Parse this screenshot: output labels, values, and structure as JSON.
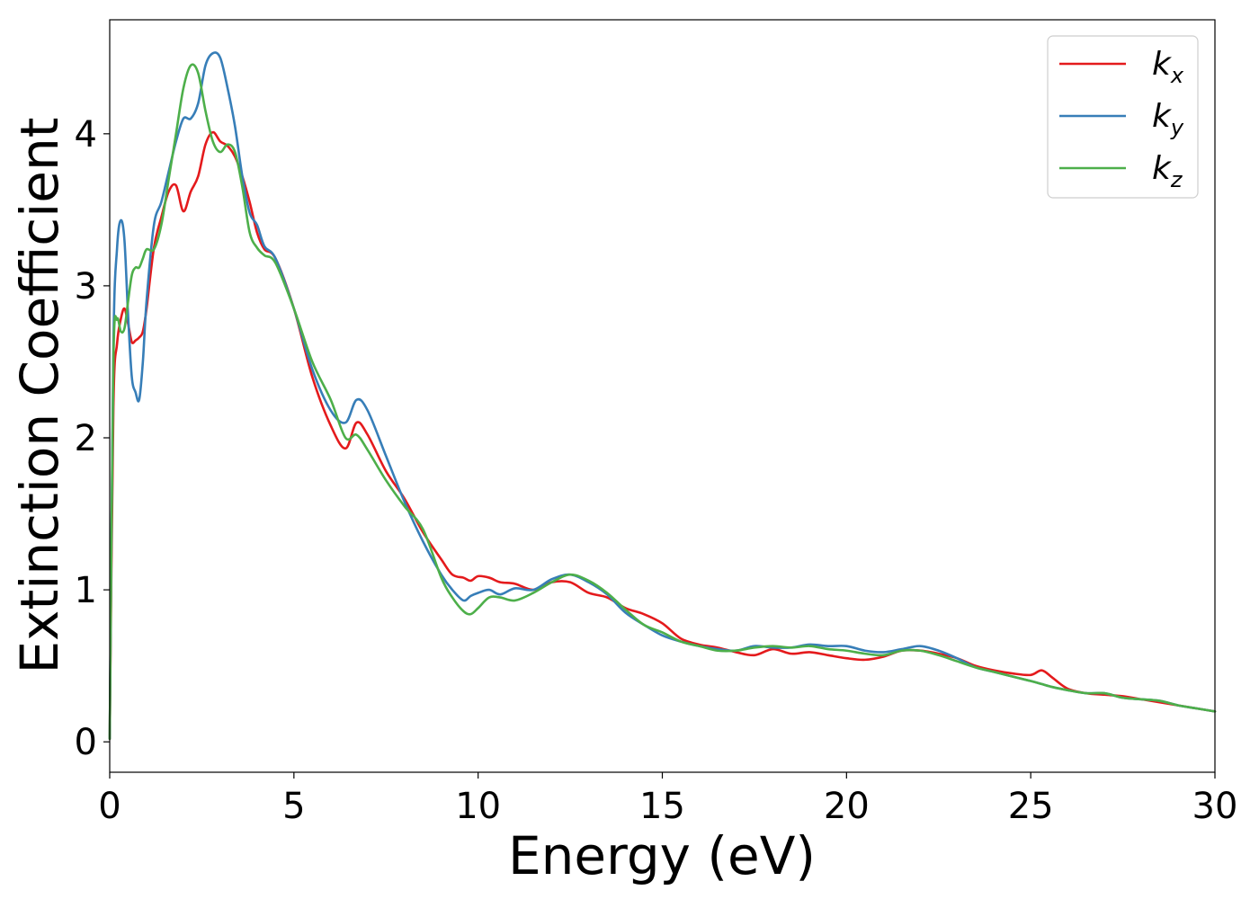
{
  "chart_data": {
    "type": "line",
    "xlabel": "Energy (eV)",
    "ylabel": "Extinction Coefficient",
    "xlim": [
      0,
      30
    ],
    "ylim": [
      -0.2,
      4.75
    ],
    "xticks": [
      0,
      5,
      10,
      15,
      20,
      25,
      30
    ],
    "yticks": [
      0,
      1,
      2,
      3,
      4
    ],
    "grid": false,
    "legend_position": "top-right",
    "series": [
      {
        "name": "k_x",
        "label_main": "k",
        "label_sub": "x",
        "color": "#e41a1c",
        "x": [
          0,
          0.1,
          0.2,
          0.3,
          0.4,
          0.5,
          0.6,
          0.7,
          0.8,
          0.9,
          1.0,
          1.2,
          1.4,
          1.6,
          1.8,
          2.0,
          2.2,
          2.4,
          2.6,
          2.8,
          3.0,
          3.2,
          3.4,
          3.6,
          3.8,
          4.0,
          4.2,
          4.5,
          5.0,
          5.5,
          6.0,
          6.4,
          6.7,
          7.0,
          7.5,
          8.0,
          8.5,
          9.0,
          9.3,
          9.6,
          9.8,
          10.0,
          10.3,
          10.6,
          11.0,
          11.5,
          12.0,
          12.5,
          13.0,
          13.5,
          14.0,
          14.5,
          15.0,
          15.5,
          16.0,
          16.5,
          17.0,
          17.5,
          18.0,
          18.5,
          19.0,
          19.5,
          20.0,
          20.5,
          21.0,
          21.5,
          22.0,
          22.5,
          23.0,
          23.5,
          24.0,
          24.5,
          25.0,
          25.3,
          25.6,
          26.0,
          26.5,
          27.0,
          27.5,
          28.0,
          28.5,
          29.0,
          29.5,
          30.0
        ],
        "y": [
          0.02,
          2.2,
          2.62,
          2.78,
          2.85,
          2.75,
          2.63,
          2.64,
          2.66,
          2.7,
          2.85,
          3.25,
          3.45,
          3.62,
          3.66,
          3.49,
          3.62,
          3.72,
          3.93,
          4.01,
          3.95,
          3.92,
          3.85,
          3.72,
          3.55,
          3.35,
          3.24,
          3.18,
          2.85,
          2.4,
          2.08,
          1.93,
          2.1,
          2.02,
          1.78,
          1.6,
          1.38,
          1.2,
          1.1,
          1.08,
          1.06,
          1.09,
          1.08,
          1.05,
          1.04,
          1.0,
          1.05,
          1.05,
          0.98,
          0.95,
          0.88,
          0.84,
          0.78,
          0.68,
          0.64,
          0.62,
          0.59,
          0.57,
          0.61,
          0.58,
          0.59,
          0.57,
          0.55,
          0.54,
          0.56,
          0.6,
          0.6,
          0.58,
          0.55,
          0.5,
          0.47,
          0.45,
          0.44,
          0.47,
          0.42,
          0.35,
          0.32,
          0.31,
          0.3,
          0.28,
          0.26,
          0.24,
          0.22,
          0.2
        ]
      },
      {
        "name": "k_y",
        "label_main": "k",
        "label_sub": "y",
        "color": "#377eb8",
        "x": [
          0,
          0.1,
          0.2,
          0.3,
          0.4,
          0.5,
          0.6,
          0.7,
          0.8,
          0.9,
          1.0,
          1.2,
          1.4,
          1.6,
          1.8,
          2.0,
          2.2,
          2.4,
          2.6,
          2.8,
          3.0,
          3.2,
          3.4,
          3.6,
          3.8,
          4.0,
          4.2,
          4.5,
          5.0,
          5.5,
          6.0,
          6.4,
          6.7,
          7.0,
          7.5,
          8.0,
          8.5,
          9.0,
          9.3,
          9.6,
          9.8,
          10.0,
          10.3,
          10.6,
          11.0,
          11.5,
          12.0,
          12.5,
          13.0,
          13.5,
          14.0,
          14.5,
          15.0,
          15.5,
          16.0,
          16.5,
          17.0,
          17.5,
          18.0,
          18.5,
          19.0,
          19.5,
          20.0,
          20.5,
          21.0,
          21.5,
          22.0,
          22.5,
          23.0,
          23.5,
          24.0,
          24.5,
          25.0,
          25.3,
          25.6,
          26.0,
          26.5,
          27.0,
          27.5,
          28.0,
          28.5,
          29.0,
          29.5,
          30.0
        ],
        "y": [
          0.02,
          2.6,
          3.25,
          3.43,
          3.3,
          2.8,
          2.4,
          2.3,
          2.25,
          2.5,
          2.9,
          3.4,
          3.55,
          3.75,
          3.95,
          4.1,
          4.1,
          4.2,
          4.45,
          4.53,
          4.5,
          4.3,
          4.05,
          3.72,
          3.48,
          3.4,
          3.26,
          3.18,
          2.85,
          2.45,
          2.18,
          2.1,
          2.25,
          2.18,
          1.88,
          1.58,
          1.32,
          1.1,
          1.0,
          0.93,
          0.96,
          0.98,
          1.0,
          0.97,
          1.01,
          1.0,
          1.07,
          1.1,
          1.05,
          0.97,
          0.85,
          0.77,
          0.7,
          0.66,
          0.63,
          0.61,
          0.6,
          0.63,
          0.62,
          0.62,
          0.64,
          0.63,
          0.63,
          0.6,
          0.59,
          0.61,
          0.63,
          0.6,
          0.55,
          0.49,
          0.46,
          0.43,
          0.4,
          0.38,
          0.36,
          0.34,
          0.32,
          0.32,
          0.29,
          0.28,
          0.27,
          0.24,
          0.22,
          0.2
        ]
      },
      {
        "name": "k_z",
        "label_main": "k",
        "label_sub": "z",
        "color": "#4daf4a",
        "x": [
          0,
          0.1,
          0.2,
          0.3,
          0.4,
          0.5,
          0.6,
          0.7,
          0.8,
          0.9,
          1.0,
          1.2,
          1.4,
          1.6,
          1.8,
          2.0,
          2.2,
          2.4,
          2.6,
          2.8,
          3.0,
          3.2,
          3.4,
          3.6,
          3.8,
          4.0,
          4.2,
          4.5,
          5.0,
          5.5,
          6.0,
          6.4,
          6.7,
          7.0,
          7.5,
          8.0,
          8.5,
          9.0,
          9.3,
          9.6,
          9.8,
          10.0,
          10.3,
          10.6,
          11.0,
          11.5,
          12.0,
          12.5,
          13.0,
          13.5,
          14.0,
          14.5,
          15.0,
          15.5,
          16.0,
          16.5,
          17.0,
          17.5,
          18.0,
          18.5,
          19.0,
          19.5,
          20.0,
          20.5,
          21.0,
          21.5,
          22.0,
          22.5,
          23.0,
          23.5,
          24.0,
          24.5,
          25.0,
          25.3,
          25.6,
          26.0,
          26.5,
          27.0,
          27.5,
          28.0,
          28.5,
          29.0,
          29.5,
          30.0
        ],
        "y": [
          0.02,
          2.5,
          2.78,
          2.7,
          2.72,
          2.9,
          3.07,
          3.12,
          3.12,
          3.18,
          3.24,
          3.24,
          3.4,
          3.7,
          4.0,
          4.3,
          4.45,
          4.4,
          4.15,
          3.95,
          3.88,
          3.93,
          3.88,
          3.65,
          3.35,
          3.25,
          3.2,
          3.15,
          2.85,
          2.5,
          2.25,
          2.0,
          2.02,
          1.92,
          1.72,
          1.55,
          1.4,
          1.08,
          0.95,
          0.86,
          0.84,
          0.88,
          0.95,
          0.95,
          0.93,
          0.98,
          1.05,
          1.1,
          1.06,
          0.98,
          0.87,
          0.77,
          0.72,
          0.66,
          0.63,
          0.6,
          0.6,
          0.62,
          0.63,
          0.62,
          0.63,
          0.61,
          0.6,
          0.58,
          0.57,
          0.6,
          0.6,
          0.57,
          0.53,
          0.49,
          0.46,
          0.43,
          0.4,
          0.38,
          0.36,
          0.34,
          0.32,
          0.32,
          0.29,
          0.28,
          0.27,
          0.24,
          0.22,
          0.2
        ]
      }
    ]
  }
}
